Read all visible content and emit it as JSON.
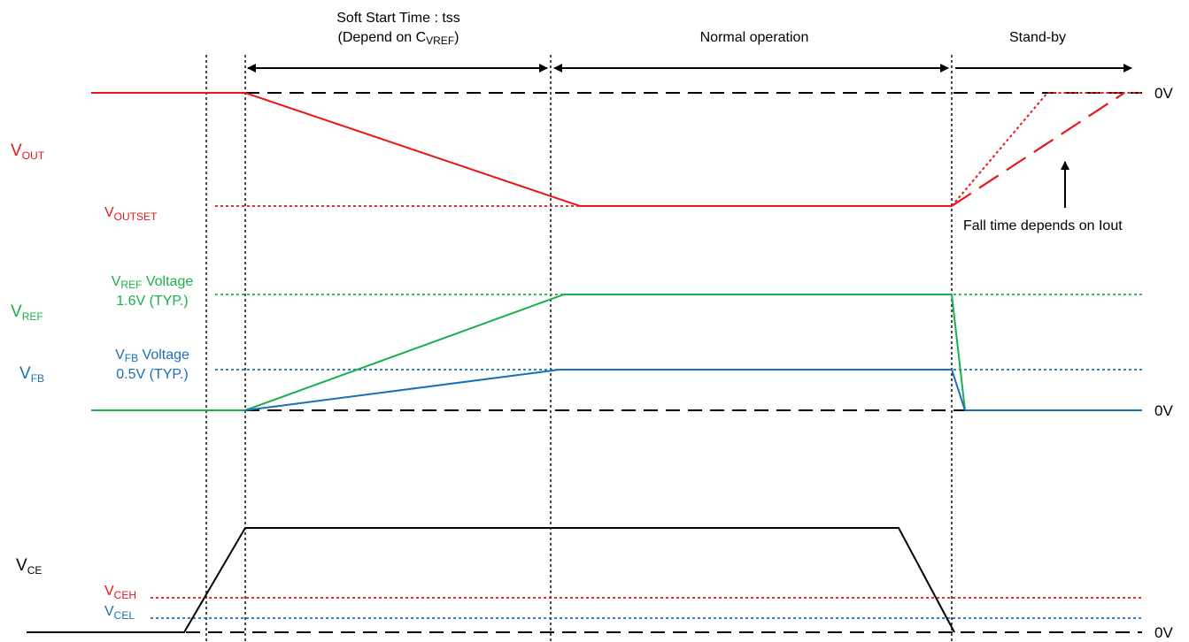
{
  "colors": {
    "vout": "#e8151b",
    "vref": "#19b04b",
    "vfb": "#1a6fb8",
    "vce": "#000000",
    "guide": "#000000"
  },
  "phases": {
    "soft_start_line1": "Soft Start Time : tss",
    "soft_start_line2_prefix": "(Depend on C",
    "soft_start_line2_sub": "VREF",
    "soft_start_line2_suffix": ")",
    "normal": "Normal operation",
    "standby": "Stand-by"
  },
  "signals": {
    "vout": {
      "main": "V",
      "sub": "OUT"
    },
    "voutset": {
      "main": "V",
      "sub": "OUTSET"
    },
    "vref": {
      "main": "V",
      "sub": "REF"
    },
    "vfb": {
      "main": "V",
      "sub": "FB"
    },
    "vce": {
      "main": "V",
      "sub": "CE"
    },
    "vceh": {
      "main": "V",
      "sub": "CEH"
    },
    "vcel": {
      "main": "V",
      "sub": "CEL"
    }
  },
  "annotations": {
    "vref_voltage_main": "V",
    "vref_voltage_sub": "REF",
    "vref_voltage_suffix": " Voltage",
    "vref_value": "1.6V (TYP.)",
    "vfb_voltage_main": "V",
    "vfb_voltage_sub": "FB",
    "vfb_voltage_suffix": " Voltage",
    "vfb_value": "0.5V (TYP.)",
    "fall_time": "Fall time depends on Iout"
  },
  "zero_labels": {
    "top": "0V",
    "middle": "0V",
    "bottom": "0V"
  }
}
